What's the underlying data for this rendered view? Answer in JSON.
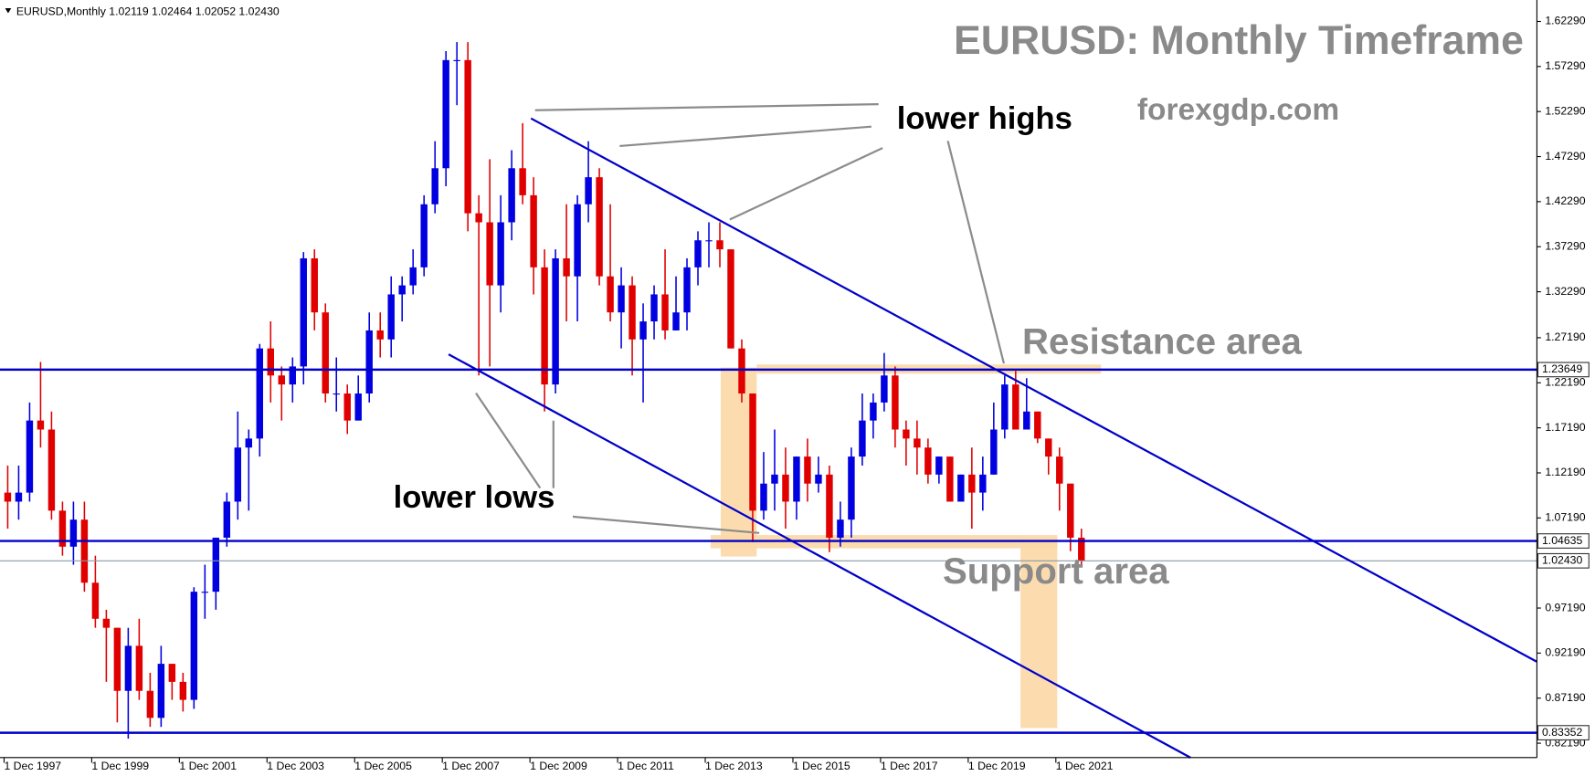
{
  "chart_data": {
    "type": "candlestick",
    "header": "EURUSD,Monthly  1.02119 1.02464 1.02052 1.02430",
    "title": "EURUSD: Monthly Timeframe",
    "watermark": "forexgdp.com",
    "annotations": [
      "lower highs",
      "lower lows",
      "Resistance area",
      "Support area"
    ],
    "up_color": "#0000e0",
    "down_color": "#e00000",
    "line_color": "#0000c8",
    "price_line_color": "#8a9aa8",
    "zone_color": "#fcd8a6",
    "xlim": [
      1997.824,
      2032.894
    ],
    "ylim": [
      0.8059,
      1.6467
    ],
    "xticks": [
      {
        "value": 1997.917,
        "label": "1 Dec 1997"
      },
      {
        "value": 1999.917,
        "label": "1 Dec 1999"
      },
      {
        "value": 2001.917,
        "label": "1 Dec 2001"
      },
      {
        "value": 2003.917,
        "label": "1 Dec 2003"
      },
      {
        "value": 2005.917,
        "label": "1 Dec 2005"
      },
      {
        "value": 2007.917,
        "label": "1 Dec 2007"
      },
      {
        "value": 2009.917,
        "label": "1 Dec 2009"
      },
      {
        "value": 2011.917,
        "label": "1 Dec 2011"
      },
      {
        "value": 2013.917,
        "label": "1 Dec 2013"
      },
      {
        "value": 2015.917,
        "label": "1 Dec 2015"
      },
      {
        "value": 2017.917,
        "label": "1 Dec 2017"
      },
      {
        "value": 2019.917,
        "label": "1 Dec 2019"
      },
      {
        "value": 2021.917,
        "label": "1 Dec 2021"
      }
    ],
    "yticks": [
      {
        "value": 1.6229,
        "label": "1.62290"
      },
      {
        "value": 1.5729,
        "label": "1.57290"
      },
      {
        "value": 1.5229,
        "label": "1.52290"
      },
      {
        "value": 1.4729,
        "label": "1.47290"
      },
      {
        "value": 1.4229,
        "label": "1.42290"
      },
      {
        "value": 1.3729,
        "label": "1.37290"
      },
      {
        "value": 1.3229,
        "label": "1.32290"
      },
      {
        "value": 1.2719,
        "label": "1.27190"
      },
      {
        "value": 1.2219,
        "label": "1.22190"
      },
      {
        "value": 1.1719,
        "label": "1.17190"
      },
      {
        "value": 1.1219,
        "label": "1.12190"
      },
      {
        "value": 1.0719,
        "label": "1.07190"
      },
      {
        "value": 0.9719,
        "label": "0.97190"
      },
      {
        "value": 0.9219,
        "label": "0.92190"
      },
      {
        "value": 0.8719,
        "label": "0.87190"
      },
      {
        "value": 0.8219,
        "label": "0.82190"
      }
    ],
    "hlines": [
      {
        "value": 1.23649
      },
      {
        "value": 1.04635
      },
      {
        "value": 0.83352
      },
      {
        "value": 1.0243,
        "label": "1.02430",
        "price_line": true
      }
    ],
    "zones": [
      {
        "x": [
          2015.09,
          2022.95
        ],
        "y": [
          1.232,
          1.2422
        ]
      },
      {
        "x": [
          2014.04,
          2021.95
        ],
        "y": [
          1.0382,
          1.0529
        ]
      },
      {
        "x": [
          2014.27,
          2015.09
        ],
        "y": [
          1.0291,
          1.2388
        ]
      },
      {
        "x": [
          2021.11,
          2021.95
        ],
        "y": [
          0.8388,
          1.0495
        ]
      }
    ],
    "trend_lines": [
      {
        "x": [
          2009.94,
          2032.89
        ],
        "y": [
          1.5153,
          0.9124
        ]
      },
      {
        "x": [
          2008.06,
          2024.99
        ],
        "y": [
          1.2535,
          0.8059
        ]
      }
    ],
    "x": [
      1998.0,
      1998.25,
      1998.5,
      1998.75,
      1999.0,
      1999.25,
      1999.5,
      1999.75,
      2000.0,
      2000.25,
      2000.5,
      2000.75,
      2001.0,
      2001.25,
      2001.5,
      2001.75,
      2002.0,
      2002.25,
      2002.5,
      2002.75,
      2003.0,
      2003.25,
      2003.5,
      2003.75,
      2004.0,
      2004.25,
      2004.5,
      2004.75,
      2005.0,
      2005.25,
      2005.5,
      2005.75,
      2006.0,
      2006.25,
      2006.5,
      2006.75,
      2007.0,
      2007.25,
      2007.5,
      2007.75,
      2008.0,
      2008.25,
      2008.5,
      2008.75,
      2009.0,
      2009.25,
      2009.5,
      2009.75,
      2010.0,
      2010.25,
      2010.5,
      2010.75,
      2011.0,
      2011.25,
      2011.5,
      2011.75,
      2012.0,
      2012.25,
      2012.5,
      2012.75,
      2013.0,
      2013.25,
      2013.5,
      2013.75,
      2014.0,
      2014.25,
      2014.5,
      2014.75,
      2015.0,
      2015.25,
      2015.5,
      2015.75,
      2016.0,
      2016.25,
      2016.5,
      2016.75,
      2017.0,
      2017.25,
      2017.5,
      2017.75,
      2018.0,
      2018.25,
      2018.5,
      2018.75,
      2019.0,
      2019.25,
      2019.5,
      2019.75,
      2020.0,
      2020.25,
      2020.5,
      2020.75,
      2021.0,
      2021.25,
      2021.5,
      2021.75,
      2022.0,
      2022.25,
      2022.5
    ],
    "open": [
      1.1,
      1.09,
      1.1,
      1.18,
      1.17,
      1.08,
      1.04,
      1.07,
      1.0,
      0.96,
      0.95,
      0.88,
      0.93,
      0.88,
      0.85,
      0.91,
      0.89,
      0.87,
      0.99,
      0.99,
      1.05,
      1.09,
      1.15,
      1.16,
      1.26,
      1.23,
      1.22,
      1.24,
      1.36,
      1.3,
      1.21,
      1.21,
      1.18,
      1.21,
      1.28,
      1.27,
      1.32,
      1.33,
      1.35,
      1.42,
      1.46,
      1.58,
      1.58,
      1.41,
      1.4,
      1.33,
      1.4,
      1.46,
      1.43,
      1.35,
      1.22,
      1.36,
      1.34,
      1.42,
      1.45,
      1.34,
      1.3,
      1.33,
      1.27,
      1.29,
      1.32,
      1.28,
      1.3,
      1.35,
      1.38,
      1.38,
      1.37,
      1.26,
      1.21,
      1.08,
      1.11,
      1.12,
      1.09,
      1.14,
      1.11,
      1.12,
      1.05,
      1.07,
      1.14,
      1.18,
      1.2,
      1.23,
      1.17,
      1.16,
      1.15,
      1.12,
      1.14,
      1.09,
      1.12,
      1.1,
      1.12,
      1.17,
      1.22,
      1.17,
      1.19,
      1.16,
      1.14,
      1.11,
      1.05
    ],
    "high": [
      1.13,
      1.13,
      1.2,
      1.245,
      1.19,
      1.09,
      1.09,
      1.09,
      1.03,
      0.97,
      0.95,
      0.95,
      0.96,
      0.9,
      0.93,
      0.91,
      0.9,
      0.995,
      1.02,
      1.05,
      1.1,
      1.19,
      1.17,
      1.265,
      1.29,
      1.24,
      1.25,
      1.367,
      1.37,
      1.31,
      1.25,
      1.22,
      1.23,
      1.3,
      1.3,
      1.34,
      1.34,
      1.37,
      1.43,
      1.49,
      1.59,
      1.6,
      1.6,
      1.43,
      1.47,
      1.43,
      1.48,
      1.51,
      1.45,
      1.37,
      1.37,
      1.42,
      1.43,
      1.49,
      1.46,
      1.42,
      1.35,
      1.34,
      1.31,
      1.33,
      1.37,
      1.34,
      1.36,
      1.39,
      1.4,
      1.4,
      1.37,
      1.27,
      1.21,
      1.145,
      1.17,
      1.15,
      1.14,
      1.16,
      1.14,
      1.13,
      1.09,
      1.15,
      1.21,
      1.21,
      1.255,
      1.24,
      1.18,
      1.18,
      1.16,
      1.14,
      1.14,
      1.12,
      1.15,
      1.14,
      1.2,
      1.23,
      1.235,
      1.227,
      1.19,
      1.16,
      1.15,
      1.11,
      1.06
    ],
    "low": [
      1.06,
      1.07,
      1.09,
      1.15,
      1.07,
      1.03,
      1.02,
      0.99,
      0.95,
      0.89,
      0.845,
      0.827,
      0.87,
      0.84,
      0.84,
      0.87,
      0.857,
      0.86,
      0.96,
      0.97,
      1.04,
      1.07,
      1.08,
      1.14,
      1.2,
      1.18,
      1.2,
      1.22,
      1.28,
      1.2,
      1.19,
      1.165,
      1.18,
      1.2,
      1.25,
      1.25,
      1.29,
      1.32,
      1.34,
      1.41,
      1.44,
      1.53,
      1.39,
      1.23,
      1.24,
      1.3,
      1.38,
      1.42,
      1.32,
      1.19,
      1.21,
      1.29,
      1.29,
      1.4,
      1.33,
      1.29,
      1.26,
      1.23,
      1.2,
      1.27,
      1.27,
      1.28,
      1.28,
      1.33,
      1.35,
      1.35,
      1.26,
      1.2,
      1.045,
      1.07,
      1.08,
      1.06,
      1.07,
      1.09,
      1.1,
      1.034,
      1.04,
      1.05,
      1.13,
      1.16,
      1.19,
      1.15,
      1.13,
      1.12,
      1.11,
      1.11,
      1.09,
      1.09,
      1.06,
      1.08,
      1.12,
      1.16,
      1.17,
      1.17,
      1.155,
      1.12,
      1.08,
      1.035,
      1.018
    ],
    "close": [
      1.09,
      1.1,
      1.18,
      1.17,
      1.08,
      1.04,
      1.07,
      1.0,
      0.96,
      0.95,
      0.88,
      0.93,
      0.88,
      0.85,
      0.91,
      0.89,
      0.87,
      0.99,
      0.99,
      1.05,
      1.09,
      1.15,
      1.16,
      1.26,
      1.23,
      1.22,
      1.24,
      1.36,
      1.3,
      1.21,
      1.21,
      1.18,
      1.21,
      1.28,
      1.27,
      1.32,
      1.33,
      1.35,
      1.42,
      1.46,
      1.58,
      1.58,
      1.41,
      1.4,
      1.33,
      1.4,
      1.46,
      1.43,
      1.35,
      1.22,
      1.36,
      1.34,
      1.42,
      1.45,
      1.34,
      1.3,
      1.33,
      1.27,
      1.29,
      1.32,
      1.28,
      1.3,
      1.35,
      1.38,
      1.38,
      1.37,
      1.26,
      1.21,
      1.08,
      1.11,
      1.12,
      1.09,
      1.14,
      1.11,
      1.12,
      1.05,
      1.07,
      1.14,
      1.18,
      1.2,
      1.23,
      1.17,
      1.16,
      1.15,
      1.12,
      1.14,
      1.09,
      1.12,
      1.1,
      1.12,
      1.17,
      1.22,
      1.17,
      1.19,
      1.16,
      1.14,
      1.11,
      1.05,
      1.0243
    ]
  }
}
